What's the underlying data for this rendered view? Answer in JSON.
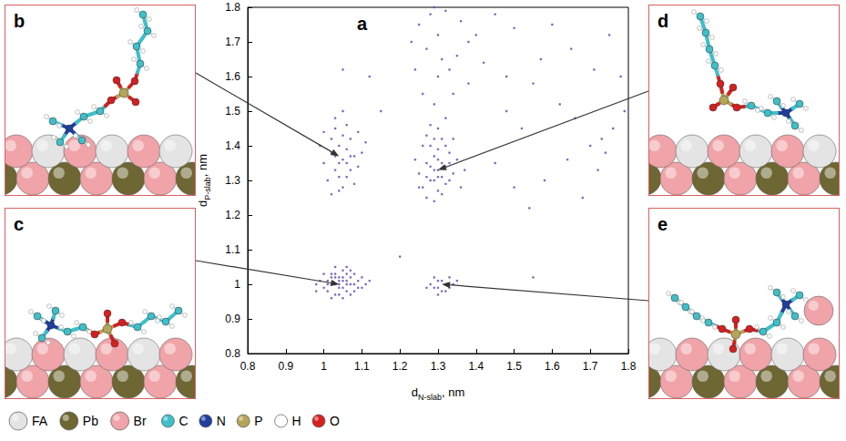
{
  "chart_data": {
    "type": "scatter",
    "label": "a",
    "x_label": [
      "d",
      "N-slab",
      ", nm"
    ],
    "y_label": [
      "d",
      "P-slab",
      ", nm"
    ],
    "xlim": [
      0.8,
      1.8
    ],
    "ylim": [
      0.8,
      1.8
    ],
    "xticks": [
      0.8,
      0.9,
      1,
      1.1,
      1.2,
      1.3,
      1.4,
      1.5,
      1.6,
      1.7,
      1.8
    ],
    "yticks": [
      0.8,
      0.9,
      1,
      1.1,
      1.2,
      1.3,
      1.4,
      1.5,
      1.6,
      1.7,
      1.8
    ],
    "grid": false,
    "series": [
      {
        "color": "#6a4fb3",
        "marker": "circle",
        "values": [
          [
            1.0,
            0.99
          ],
          [
            1.01,
            1.01
          ],
          [
            1.02,
            1.0
          ],
          [
            1.03,
            1.02
          ],
          [
            1.04,
            0.99
          ],
          [
            1.05,
            1.01
          ],
          [
            1.06,
            1.0
          ],
          [
            1.07,
            1.02
          ],
          [
            1.08,
            0.98
          ],
          [
            1.03,
            0.97
          ],
          [
            1.02,
            1.03
          ],
          [
            1.05,
            1.04
          ],
          [
            1.04,
            1.02
          ],
          [
            1.06,
            0.98
          ],
          [
            1.07,
            1.0
          ],
          [
            1.09,
            1.01
          ],
          [
            1.1,
            0.99
          ],
          [
            1.01,
            0.98
          ],
          [
            0.99,
            1.01
          ],
          [
            0.98,
            1.0
          ],
          [
            1.03,
            1.0
          ],
          [
            1.04,
            1.01
          ],
          [
            1.05,
            0.99
          ],
          [
            1.06,
            1.03
          ],
          [
            1.08,
            1.03
          ],
          [
            1.02,
            0.96
          ],
          [
            1.05,
            0.96
          ],
          [
            1.07,
            0.97
          ],
          [
            1.11,
            1.0
          ],
          [
            1.0,
            1.03
          ],
          [
            1.03,
            1.05
          ],
          [
            1.06,
            1.05
          ],
          [
            1.04,
            0.97
          ],
          [
            1.09,
            0.99
          ],
          [
            1.02,
            1.02
          ],
          [
            1.05,
            1.02
          ],
          [
            1.01,
            1.0
          ],
          [
            1.04,
            1.0
          ],
          [
            1.07,
            1.04
          ],
          [
            1.1,
            1.02
          ],
          [
            0.98,
            0.98
          ],
          [
            1.12,
            1.01
          ],
          [
            1.03,
            1.03
          ],
          [
            1.06,
            1.01
          ],
          [
            1.08,
            1.0
          ],
          [
            1.0,
            1.35
          ],
          [
            1.02,
            1.38
          ],
          [
            1.03,
            1.33
          ],
          [
            1.04,
            1.4
          ],
          [
            1.05,
            1.36
          ],
          [
            1.06,
            1.31
          ],
          [
            1.07,
            1.42
          ],
          [
            1.08,
            1.37
          ],
          [
            1.01,
            1.3
          ],
          [
            1.03,
            1.45
          ],
          [
            1.05,
            1.28
          ],
          [
            1.06,
            1.39
          ],
          [
            1.09,
            1.34
          ],
          [
            1.02,
            1.42
          ],
          [
            1.04,
            1.35
          ],
          [
            1.07,
            1.33
          ],
          [
            1.1,
            1.38
          ],
          [
            0.99,
            1.4
          ],
          [
            1.03,
            1.48
          ],
          [
            1.06,
            1.46
          ],
          [
            1.08,
            1.29
          ],
          [
            1.05,
            1.43
          ],
          [
            1.02,
            1.26
          ],
          [
            1.04,
            1.31
          ],
          [
            1.07,
            1.37
          ],
          [
            1.11,
            1.41
          ],
          [
            1.0,
            1.44
          ],
          [
            1.05,
            1.5
          ],
          [
            1.03,
            1.37
          ],
          [
            1.06,
            1.35
          ],
          [
            1.09,
            1.44
          ],
          [
            1.04,
            1.27
          ],
          [
            1.25,
            1.32
          ],
          [
            1.27,
            1.35
          ],
          [
            1.28,
            1.3
          ],
          [
            1.29,
            1.33
          ],
          [
            1.3,
            1.36
          ],
          [
            1.31,
            1.31
          ],
          [
            1.32,
            1.34
          ],
          [
            1.33,
            1.38
          ],
          [
            1.26,
            1.28
          ],
          [
            1.28,
            1.4
          ],
          [
            1.3,
            1.27
          ],
          [
            1.31,
            1.42
          ],
          [
            1.34,
            1.32
          ],
          [
            1.29,
            1.37
          ],
          [
            1.27,
            1.25
          ],
          [
            1.32,
            1.29
          ],
          [
            1.35,
            1.36
          ],
          [
            1.24,
            1.36
          ],
          [
            1.3,
            1.33
          ],
          [
            1.29,
            1.3
          ],
          [
            1.31,
            1.35
          ],
          [
            1.28,
            1.34
          ],
          [
            1.33,
            1.3
          ],
          [
            1.26,
            1.4
          ],
          [
            1.3,
            1.45
          ],
          [
            1.32,
            1.4
          ],
          [
            1.27,
            1.31
          ],
          [
            1.36,
            1.28
          ],
          [
            1.29,
            1.24
          ],
          [
            1.31,
            1.26
          ],
          [
            1.34,
            1.42
          ],
          [
            1.28,
            1.46
          ],
          [
            1.3,
            1.39
          ],
          [
            1.33,
            1.35
          ],
          [
            1.25,
            1.28
          ],
          [
            1.37,
            1.33
          ],
          [
            1.27,
            1.43
          ],
          [
            1.32,
            1.48
          ],
          [
            1.29,
            1.42
          ],
          [
            1.3,
            1.31
          ],
          [
            1.28,
            1.0
          ],
          [
            1.29,
            0.99
          ],
          [
            1.3,
            1.01
          ],
          [
            1.31,
            0.98
          ],
          [
            1.32,
            1.0
          ],
          [
            1.33,
            1.02
          ],
          [
            1.3,
            0.99
          ],
          [
            1.34,
            1.0
          ],
          [
            1.29,
            1.02
          ],
          [
            1.31,
            1.01
          ],
          [
            1.27,
            0.99
          ],
          [
            1.32,
            0.98
          ],
          [
            1.35,
            1.01
          ],
          [
            1.3,
            0.97
          ],
          [
            1.33,
            0.99
          ],
          [
            1.25,
            1.75
          ],
          [
            1.28,
            1.78
          ],
          [
            1.3,
            1.72
          ],
          [
            1.32,
            1.79
          ],
          [
            1.27,
            1.68
          ],
          [
            1.33,
            1.62
          ],
          [
            1.3,
            1.6
          ],
          [
            1.35,
            1.66
          ],
          [
            1.38,
            1.58
          ],
          [
            1.26,
            1.55
          ],
          [
            1.29,
            1.52
          ],
          [
            1.4,
            1.72
          ],
          [
            1.42,
            1.64
          ],
          [
            1.36,
            1.76
          ],
          [
            1.24,
            1.62
          ],
          [
            1.31,
            1.65
          ],
          [
            1.45,
            1.78
          ],
          [
            1.34,
            1.55
          ],
          [
            1.38,
            1.7
          ],
          [
            1.29,
            1.8
          ],
          [
            1.48,
            1.6
          ],
          [
            1.5,
            1.74
          ],
          [
            1.23,
            1.7
          ],
          [
            1.45,
            1.35
          ],
          [
            1.52,
            1.45
          ],
          [
            1.58,
            1.3
          ],
          [
            1.62,
            1.52
          ],
          [
            1.7,
            1.4
          ],
          [
            1.74,
            1.38
          ],
          [
            1.76,
            1.45
          ],
          [
            1.72,
            1.33
          ],
          [
            1.78,
            1.6
          ],
          [
            1.65,
            1.68
          ],
          [
            1.55,
            1.58
          ],
          [
            1.68,
            1.25
          ],
          [
            1.6,
            1.75
          ],
          [
            1.75,
            1.72
          ],
          [
            1.5,
            1.28
          ],
          [
            1.66,
            1.48
          ],
          [
            1.73,
            1.42
          ],
          [
            1.57,
            1.65
          ],
          [
            1.64,
            1.36
          ],
          [
            1.79,
            1.5
          ],
          [
            1.71,
            1.62
          ],
          [
            1.48,
            1.5
          ],
          [
            1.54,
            1.22
          ],
          [
            1.12,
            1.6
          ],
          [
            1.15,
            1.5
          ],
          [
            1.05,
            1.62
          ],
          [
            1.55,
            1.02
          ],
          [
            1.2,
            1.08
          ]
        ]
      }
    ]
  },
  "panels": [
    {
      "label": "b",
      "points_to": [
        1.04,
        1.37
      ]
    },
    {
      "label": "c",
      "points_to": [
        1.04,
        1.0
      ]
    },
    {
      "label": "d",
      "points_to": [
        1.3,
        1.33
      ]
    },
    {
      "label": "e",
      "points_to": [
        1.31,
        1.0
      ]
    }
  ],
  "legend_items": [
    {
      "label": "FA",
      "color": "#e4e4e4"
    },
    {
      "label": "Pb",
      "color": "#6e6633"
    },
    {
      "label": "Br",
      "color": "#f0a3a8"
    },
    {
      "label": "C",
      "color": "#3fbfc8"
    },
    {
      "label": "N",
      "color": "#1f3e9e"
    },
    {
      "label": "P",
      "color": "#b5a55a"
    },
    {
      "label": "H",
      "color": "#ffffff"
    },
    {
      "label": "O",
      "color": "#d42020"
    }
  ]
}
